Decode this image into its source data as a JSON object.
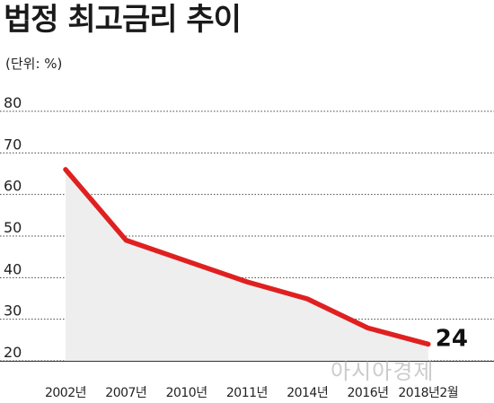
{
  "title": "법정 최고금리 추이",
  "unit_label": "(단위: %)",
  "watermark": "아시아경제",
  "chart_data": {
    "type": "area",
    "title": "법정 최고금리 추이",
    "unit": "(단위: %)",
    "categories": [
      "2002년",
      "2007년",
      "2010년",
      "2011년",
      "2014년",
      "2016년",
      "2018년2월"
    ],
    "values": [
      66,
      49,
      44,
      39,
      34.9,
      27.9,
      24
    ],
    "data_labels": [
      {
        "category": "2018년2월",
        "text": "24"
      }
    ],
    "yticks": [
      20,
      30,
      40,
      50,
      60,
      70,
      80
    ],
    "ylim": [
      20,
      80
    ],
    "grid": true,
    "line_color": "#e02020",
    "fill_color": "#eeeeee"
  }
}
